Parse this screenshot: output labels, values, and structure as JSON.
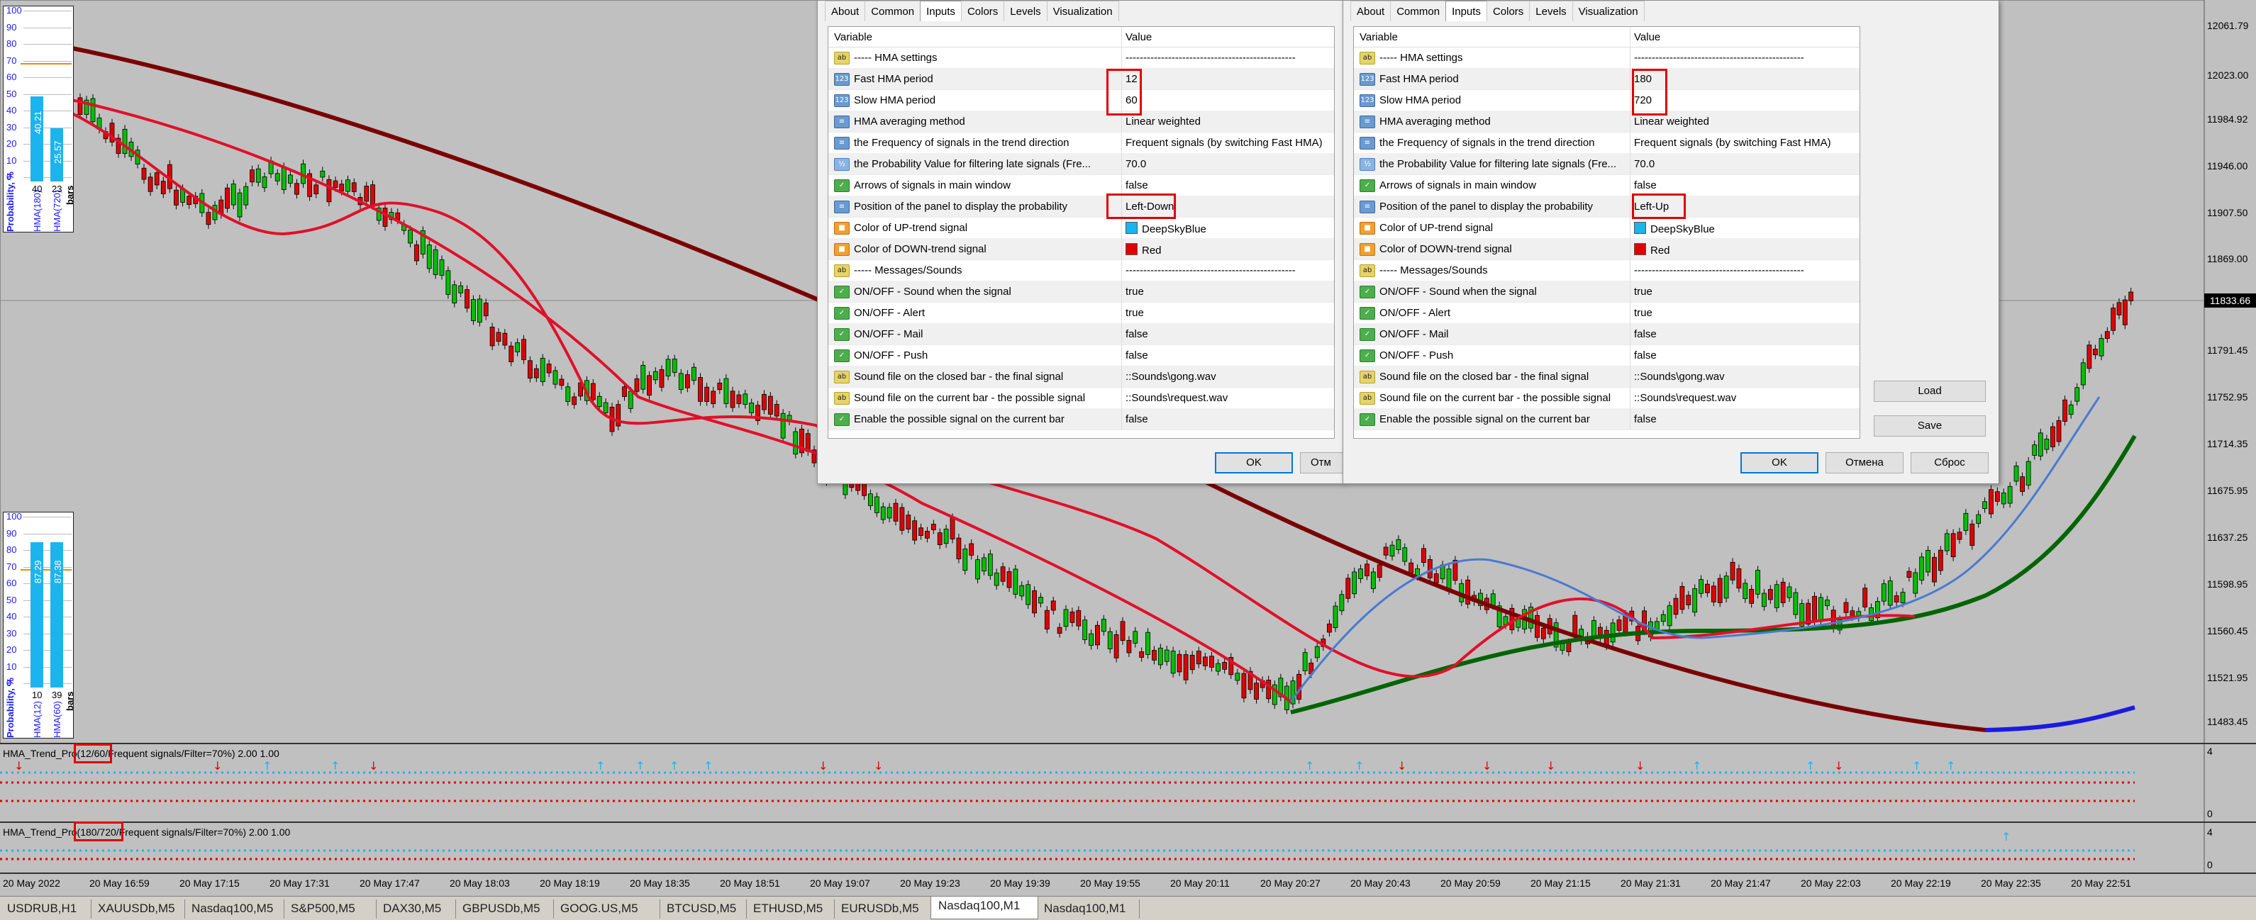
{
  "chart": {
    "price_labels": [
      "12061.79",
      "12023.00",
      "11984.92",
      "11946.00",
      "11907.50",
      "11869.00",
      "11791.45",
      "11752.95",
      "11714.35",
      "11675.95",
      "11637.25",
      "11598.95",
      "11560.45",
      "11521.95",
      "11483.45"
    ],
    "current_price": "11833.66",
    "time_labels": [
      "20 May 2022",
      "20 May 16:59",
      "20 May 17:15",
      "20 May 17:31",
      "20 May 17:47",
      "20 May 18:03",
      "20 May 18:19",
      "20 May 18:35",
      "20 May 18:51",
      "20 May 19:07",
      "20 May 19:23",
      "20 May 19:39",
      "20 May 19:55",
      "20 May 20:11",
      "20 May 20:27",
      "20 May 20:43",
      "20 May 20:59",
      "20 May 21:15",
      "20 May 21:31",
      "20 May 21:47",
      "20 May 22:03",
      "20 May 22:19",
      "20 May 22:35",
      "20 May 22:51"
    ],
    "colors": {
      "background": "#c0c0c0",
      "bull": "#00c000",
      "bear": "#e00000",
      "fast_hma_up": "#4a7ad0",
      "slow_red": "#e0102a",
      "dark_red": "#7a0000",
      "green": "#006400",
      "blue": "#1a1ae0",
      "magenta": "#e020e0"
    }
  },
  "indicator1": {
    "label_prefix": "HMA_Trend_Pro(",
    "label_highlight": "12/60/",
    "label_suffix": "Frequent signals/Filter=70%) 2.00 1.00",
    "scale_top": "4",
    "scale_bottom": "0"
  },
  "indicator2": {
    "label_prefix": "HMA_Trend_Pro(",
    "label_highlight": "180/720/",
    "label_suffix": "Frequent signals/Filter=70%) 2.00 1.00",
    "scale_top": "4",
    "scale_bottom": "0"
  },
  "panel_top": {
    "scale": [
      "100",
      "90",
      "80",
      "70",
      "60",
      "50",
      "40",
      "30",
      "20",
      "10",
      "0"
    ],
    "bar1_value": "40.21",
    "bar2_value": "25.57",
    "bar1_count": "40",
    "bar2_count": "23",
    "bar1_label": "HMA(180)",
    "bar2_label": "HMA(720)",
    "title": "Probability, %",
    "bars_label": "bars"
  },
  "panel_bottom": {
    "scale": [
      "100",
      "90",
      "80",
      "70",
      "60",
      "50",
      "40",
      "30",
      "20",
      "10",
      "0"
    ],
    "bar1_value": "87.29",
    "bar2_value": "87.38",
    "bar1_count": "10",
    "bar2_count": "39",
    "bar1_label": "HMA(12)",
    "bar2_label": "HMA(60)",
    "title": "Probability, %",
    "bars_label": "bars"
  },
  "dialog_tabs": [
    "About",
    "Common",
    "Inputs",
    "Colors",
    "Levels",
    "Visualization"
  ],
  "grid_headers": {
    "variable": "Variable",
    "value": "Value"
  },
  "dialog_left": {
    "rows": [
      {
        "icon": "ab",
        "var": "----- HMA settings",
        "val": "------------------------------------------------"
      },
      {
        "icon": "num",
        "var": "Fast HMA period",
        "val": "12"
      },
      {
        "icon": "num",
        "var": "Slow HMA period",
        "val": "60"
      },
      {
        "icon": "meth",
        "var": "HMA averaging method",
        "val": "Linear weighted"
      },
      {
        "icon": "meth",
        "var": "the Frequency of signals in the trend direction",
        "val": "Frequent signals (by switching Fast HMA)"
      },
      {
        "icon": "frac",
        "var": "the Probability Value for filtering late signals (Fre...",
        "val": "70.0"
      },
      {
        "icon": "bool",
        "var": "Arrows of signals in main window",
        "val": "false"
      },
      {
        "icon": "meth",
        "var": "Position of the panel to display the probability",
        "val": "Left-Down"
      },
      {
        "icon": "col",
        "var": "Color of UP-trend signal",
        "val": "DeepSkyBlue",
        "swatch": "#1cb4ee"
      },
      {
        "icon": "col",
        "var": "Color of DOWN-trend signal",
        "val": "Red",
        "swatch": "#e00000"
      },
      {
        "icon": "ab",
        "var": "----- Messages/Sounds",
        "val": "------------------------------------------------"
      },
      {
        "icon": "bool",
        "var": "ON/OFF - Sound when the signal",
        "val": "true"
      },
      {
        "icon": "bool",
        "var": "ON/OFF - Alert",
        "val": "true"
      },
      {
        "icon": "bool",
        "var": "ON/OFF - Mail",
        "val": "false"
      },
      {
        "icon": "bool",
        "var": "ON/OFF - Push",
        "val": "false"
      },
      {
        "icon": "ab",
        "var": "Sound file on the closed bar - the final signal",
        "val": "::Sounds\\gong.wav"
      },
      {
        "icon": "ab",
        "var": "Sound file on the current bar - the possible signal",
        "val": "::Sounds\\request.wav"
      },
      {
        "icon": "bool",
        "var": "Enable the possible signal on the current bar",
        "val": "false"
      }
    ],
    "ok": "OK",
    "cancel": "Отм"
  },
  "dialog_right": {
    "rows": [
      {
        "icon": "ab",
        "var": "----- HMA settings",
        "val": "------------------------------------------------"
      },
      {
        "icon": "num",
        "var": "Fast HMA period",
        "val": "180"
      },
      {
        "icon": "num",
        "var": "Slow HMA period",
        "val": "720"
      },
      {
        "icon": "meth",
        "var": "HMA averaging method",
        "val": "Linear weighted"
      },
      {
        "icon": "meth",
        "var": "the Frequency of signals in the trend direction",
        "val": "Frequent signals (by switching Fast HMA)"
      },
      {
        "icon": "frac",
        "var": "the Probability Value for filtering late signals (Fre...",
        "val": "70.0"
      },
      {
        "icon": "bool",
        "var": "Arrows of signals in main window",
        "val": "false"
      },
      {
        "icon": "meth",
        "var": "Position of the panel to display the probability",
        "val": "Left-Up"
      },
      {
        "icon": "col",
        "var": "Color of UP-trend signal",
        "val": "DeepSkyBlue",
        "swatch": "#1cb4ee"
      },
      {
        "icon": "col",
        "var": "Color of DOWN-trend signal",
        "val": "Red",
        "swatch": "#e00000"
      },
      {
        "icon": "ab",
        "var": "----- Messages/Sounds",
        "val": "------------------------------------------------"
      },
      {
        "icon": "bool",
        "var": "ON/OFF - Sound when the signal",
        "val": "true"
      },
      {
        "icon": "bool",
        "var": "ON/OFF - Alert",
        "val": "true"
      },
      {
        "icon": "bool",
        "var": "ON/OFF - Mail",
        "val": "false"
      },
      {
        "icon": "bool",
        "var": "ON/OFF - Push",
        "val": "false"
      },
      {
        "icon": "ab",
        "var": "Sound file on the closed bar - the final signal",
        "val": "::Sounds\\gong.wav"
      },
      {
        "icon": "ab",
        "var": "Sound file on the current bar - the possible signal",
        "val": "::Sounds\\request.wav"
      },
      {
        "icon": "bool",
        "var": "Enable the possible signal on the current bar",
        "val": "false"
      }
    ],
    "load": "Load",
    "save": "Save",
    "ok": "OK",
    "cancel": "Отмена",
    "reset": "Сброс"
  },
  "symbol_tabs": [
    "USDRUB,H1",
    "XAUUSDb,M5",
    "Nasdaq100,M5",
    "S&P500,M5",
    "DAX30,M5",
    "GBPUSDb,M5",
    "GOOG.US,M5",
    "BTCUSD,M5",
    "ETHUSD,M5",
    "EURUSDb,M5",
    "Nasdaq100,M1",
    "Nasdaq100,M1"
  ],
  "active_symbol_tab": 10
}
